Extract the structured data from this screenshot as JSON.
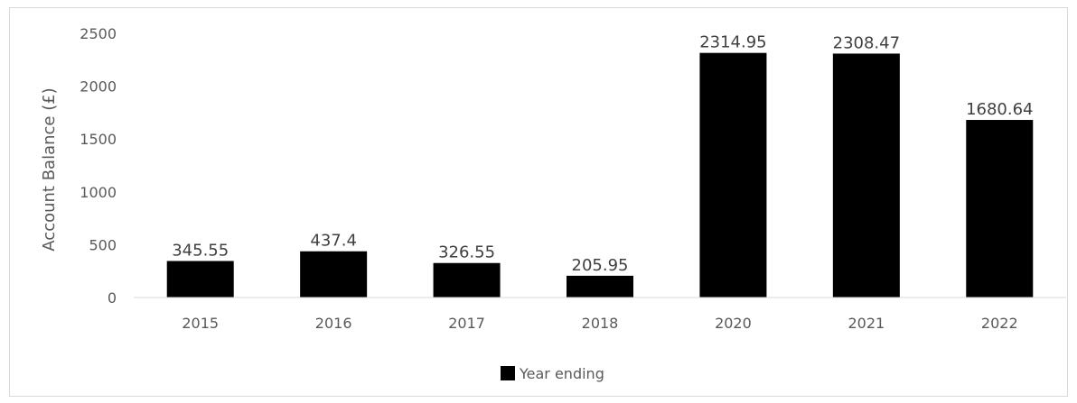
{
  "chart_data": {
    "type": "bar",
    "categories": [
      "2015",
      "2016",
      "2017",
      "2018",
      "2020",
      "2021",
      "2022"
    ],
    "series": [
      {
        "name": "Year ending",
        "values": [
          345.55,
          437.4,
          326.55,
          205.95,
          2314.95,
          2308.47,
          1680.64
        ],
        "color": "#000000"
      }
    ],
    "data_labels": [
      "345.55",
      "437.4",
      "326.55",
      "205.95",
      "2314.95",
      "2308.47",
      "1680.64"
    ],
    "title": "",
    "xlabel": "",
    "ylabel": "Account Balance (£)",
    "ylim": [
      0,
      2500
    ],
    "yticks": [
      "0",
      "500",
      "1000",
      "1500",
      "2000",
      "2500"
    ],
    "grid": false,
    "legend": "bottom"
  }
}
